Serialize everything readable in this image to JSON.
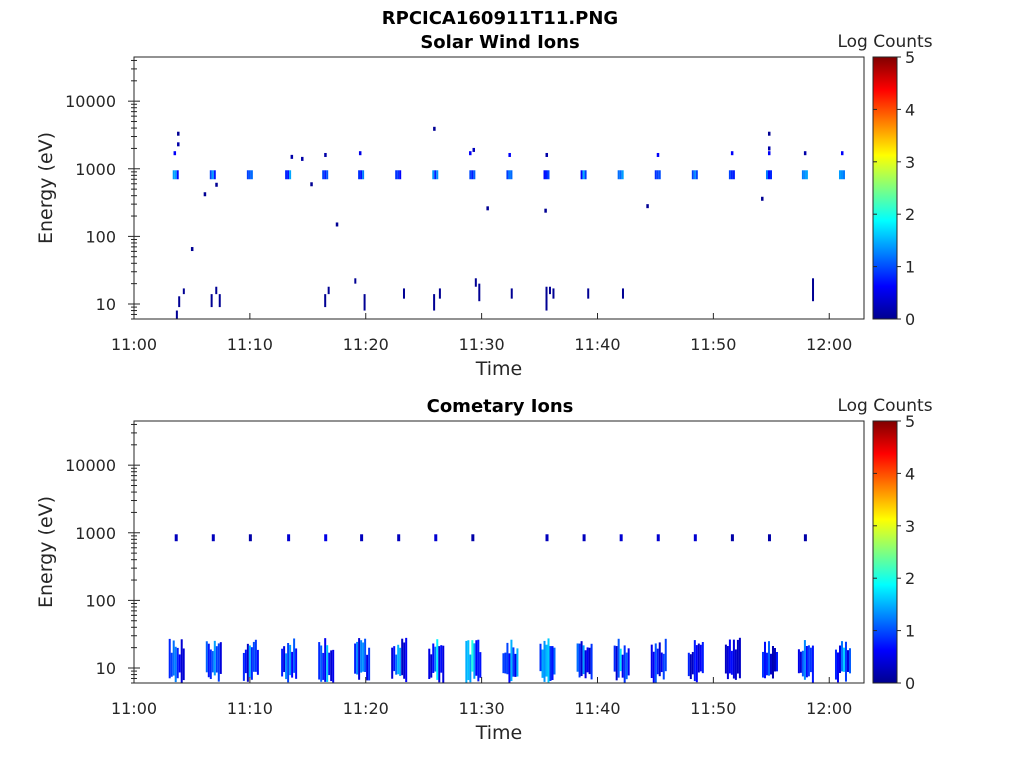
{
  "figure": {
    "title": "RPCICA160911T11.PNG"
  },
  "chart_data": [
    {
      "type": "heatmap",
      "title": "Solar Wind Ions",
      "xlabel": "Time",
      "ylabel": "Energy (eV)",
      "x_ticks": [
        "11:00",
        "11:10",
        "11:20",
        "11:30",
        "11:40",
        "11:50",
        "12:00"
      ],
      "y_scale": "log",
      "y_ticks": [
        "10",
        "100",
        "1000",
        "10000"
      ],
      "xlim_minutes": [
        0,
        63
      ],
      "ylim": [
        6,
        45000
      ],
      "colorbar": {
        "label": "Log Counts",
        "ticks": [
          "0",
          "1",
          "2",
          "3",
          "4",
          "5"
        ],
        "range": [
          0,
          5
        ],
        "colormap": "jet"
      },
      "bursts_minutes": [
        3.6,
        6.8,
        10.0,
        13.3,
        16.5,
        19.6,
        22.8,
        26.0,
        29.2,
        32.4,
        35.6,
        38.8,
        42.0,
        45.2,
        48.4,
        51.6,
        54.8,
        57.9,
        61.1
      ],
      "main_band_energy_eV": [
        700,
        950
      ],
      "points": [
        [
          3.5,
          1700,
          0.6
        ],
        [
          3.8,
          2300,
          0.2
        ],
        [
          3.8,
          3300,
          0.1
        ],
        [
          6.1,
          420,
          0.1
        ],
        [
          7.1,
          580,
          0.1
        ],
        [
          5.0,
          65,
          0.1
        ],
        [
          13.6,
          1500,
          0.2
        ],
        [
          14.5,
          1400,
          0.2
        ],
        [
          15.3,
          590,
          0.1
        ],
        [
          16.5,
          1600,
          0.2
        ],
        [
          17.5,
          150,
          0.1
        ],
        [
          19.5,
          1700,
          0.5
        ],
        [
          25.9,
          3900,
          0.1
        ],
        [
          29.0,
          1700,
          0.6
        ],
        [
          29.3,
          1900,
          0.3
        ],
        [
          30.5,
          260,
          0.1
        ],
        [
          32.4,
          1600,
          0.6
        ],
        [
          35.5,
          240,
          0.1
        ],
        [
          35.6,
          1600,
          0.2
        ],
        [
          44.3,
          280,
          0.1
        ],
        [
          45.2,
          1600,
          0.6
        ],
        [
          51.6,
          1700,
          0.6
        ],
        [
          54.2,
          360,
          0.1
        ],
        [
          54.8,
          1700,
          0.6
        ],
        [
          54.8,
          2000,
          0.2
        ],
        [
          54.8,
          3300,
          0.1
        ],
        [
          57.9,
          1700,
          0.2
        ],
        [
          61.1,
          1700,
          0.6
        ]
      ],
      "low_energy_lines": [
        [
          3.7,
          6,
          8
        ],
        [
          3.9,
          9,
          13
        ],
        [
          4.3,
          14,
          17
        ],
        [
          6.7,
          9,
          14
        ],
        [
          7.1,
          14,
          18
        ],
        [
          7.4,
          9,
          14
        ],
        [
          16.5,
          9,
          14
        ],
        [
          16.8,
          14,
          18
        ],
        [
          19.1,
          20,
          24
        ],
        [
          19.9,
          8,
          14
        ],
        [
          23.3,
          12,
          17
        ],
        [
          25.9,
          8,
          14
        ],
        [
          26.4,
          12,
          17
        ],
        [
          29.5,
          18,
          24
        ],
        [
          29.8,
          11,
          20
        ],
        [
          32.6,
          12,
          17
        ],
        [
          35.6,
          8,
          18
        ],
        [
          35.9,
          14,
          18
        ],
        [
          36.2,
          12,
          17
        ],
        [
          39.2,
          12,
          17
        ],
        [
          42.2,
          12,
          17
        ],
        [
          58.6,
          11,
          24
        ]
      ]
    },
    {
      "type": "heatmap",
      "title": "Cometary Ions",
      "xlabel": "Time",
      "ylabel": "Energy (eV)",
      "x_ticks": [
        "11:00",
        "11:10",
        "11:20",
        "11:30",
        "11:40",
        "11:50",
        "12:00"
      ],
      "y_scale": "log",
      "y_ticks": [
        "10",
        "100",
        "1000",
        "10000"
      ],
      "xlim_minutes": [
        0,
        63
      ],
      "ylim": [
        6,
        45000
      ],
      "colorbar": {
        "label": "Log Counts",
        "ticks": [
          "0",
          "1",
          "2",
          "3",
          "4",
          "5"
        ],
        "range": [
          0,
          5
        ],
        "colormap": "jet"
      },
      "bursts_minutes": [
        3.6,
        6.8,
        10.0,
        13.3,
        16.5,
        19.6,
        22.8,
        26.0,
        29.2,
        32.4,
        35.6,
        38.8,
        42.0,
        45.2,
        48.4,
        51.6,
        54.8,
        57.9,
        61.1
      ],
      "burst_intensity": [
        1.2,
        1.2,
        1.0,
        1.1,
        1.0,
        1.2,
        1.0,
        1.1,
        1.4,
        1.3,
        1.3,
        1.0,
        1.1,
        0.9,
        0.8,
        0.7,
        0.8,
        1.0,
        1.0
      ],
      "low_energy_band_eV": [
        6,
        28
      ],
      "points_1000eV": [
        [
          3.6,
          0.3
        ],
        [
          6.8,
          0.3
        ],
        [
          10.0,
          0.2
        ],
        [
          13.3,
          0.4
        ],
        [
          16.5,
          0.5
        ],
        [
          19.6,
          0.3
        ],
        [
          22.8,
          0.3
        ],
        [
          26.0,
          0.4
        ],
        [
          29.2,
          0.2
        ],
        [
          35.6,
          0.3
        ],
        [
          38.8,
          0.3
        ],
        [
          42.0,
          0.4
        ],
        [
          45.2,
          0.4
        ],
        [
          48.4,
          0.4
        ],
        [
          51.6,
          0.2
        ],
        [
          54.8,
          0.2
        ],
        [
          57.9,
          0.2
        ]
      ]
    }
  ]
}
